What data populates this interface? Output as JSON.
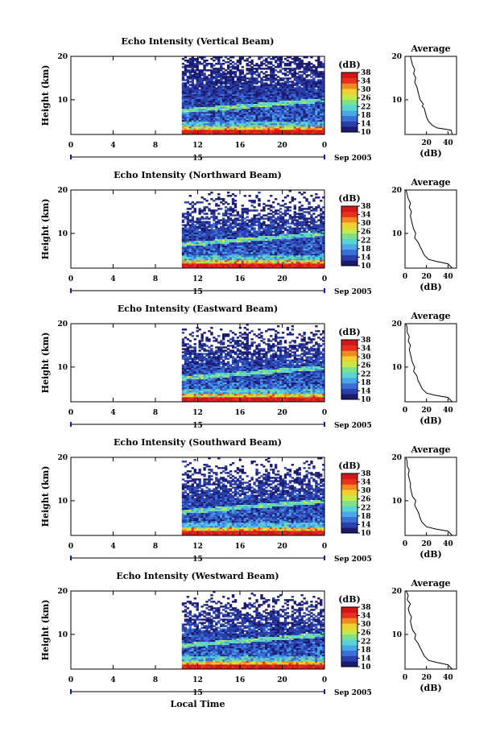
{
  "colors": {
    "bg": "#ffffff",
    "axis": "#000000",
    "colormap": [
      "#1a1a6e",
      "#2b3fa8",
      "#3a6fd8",
      "#4aa8e8",
      "#5ad4d0",
      "#7fe08a",
      "#c8e84a",
      "#f0d030",
      "#f08a20",
      "#e83020",
      "#d01818"
    ],
    "no_data": "#ffffff"
  },
  "chart_data": [
    {
      "type": "heatmap",
      "title": "Echo Intensity (Vertical Beam)",
      "ylabel": "Height (km)",
      "xlim": [
        0,
        24
      ],
      "ylim": [
        2,
        20
      ],
      "x_ticks": [
        "0",
        "4",
        "8",
        "12",
        "16",
        "20",
        "0"
      ],
      "y_ticks": [
        "20",
        "10"
      ],
      "date_label": "15",
      "date_suffix": "Sep 2005",
      "data_start_hour": 10.5,
      "colorbar": {
        "label": "(dB)",
        "ticks": [
          "38",
          "34",
          "30",
          "26",
          "22",
          "18",
          "14",
          "10"
        ],
        "range": [
          10,
          38
        ]
      },
      "average": {
        "title": "Average",
        "xlabel": "(dB)",
        "x_ticks": [
          "20",
          "40"
        ],
        "xlim": [
          0,
          48
        ],
        "ylim": [
          2,
          20
        ],
        "y_ticks": [
          "20",
          "10"
        ],
        "profile": [
          [
            44,
            2
          ],
          [
            43,
            3
          ],
          [
            30,
            3.5
          ],
          [
            26,
            4
          ],
          [
            22,
            5
          ],
          [
            20,
            6
          ],
          [
            19,
            7
          ],
          [
            18,
            8
          ],
          [
            16,
            8.5
          ],
          [
            17,
            9
          ],
          [
            14,
            10
          ],
          [
            13,
            11
          ],
          [
            12,
            12
          ],
          [
            11,
            13
          ],
          [
            9,
            14
          ],
          [
            10,
            15
          ],
          [
            8,
            16
          ],
          [
            9,
            17
          ],
          [
            7,
            18
          ],
          [
            6,
            19
          ],
          [
            5,
            20
          ]
        ]
      }
    },
    {
      "type": "heatmap",
      "title": "Echo Intensity (Northward Beam)",
      "ylabel": "Height (km)",
      "xlim": [
        0,
        24
      ],
      "ylim": [
        2,
        20
      ],
      "x_ticks": [
        "0",
        "4",
        "8",
        "12",
        "16",
        "20",
        "0"
      ],
      "y_ticks": [
        "20",
        "10"
      ],
      "date_label": "15",
      "date_suffix": "Sep 2005",
      "data_start_hour": 10.5,
      "colorbar": {
        "label": "(dB)",
        "ticks": [
          "38",
          "34",
          "30",
          "26",
          "22",
          "18",
          "14",
          "10"
        ],
        "range": [
          10,
          38
        ]
      },
      "average": {
        "title": "Average",
        "xlabel": "(dB)",
        "x_ticks": [
          "0",
          "20",
          "40"
        ],
        "xlim": [
          0,
          48
        ],
        "ylim": [
          2,
          20
        ],
        "y_ticks": [
          "20",
          "10"
        ],
        "profile": [
          [
            44,
            2
          ],
          [
            40,
            3
          ],
          [
            30,
            3.5
          ],
          [
            22,
            4
          ],
          [
            18,
            5
          ],
          [
            16,
            6
          ],
          [
            14,
            7
          ],
          [
            12,
            8
          ],
          [
            9,
            9
          ],
          [
            10,
            10
          ],
          [
            8,
            11
          ],
          [
            7,
            12
          ],
          [
            6,
            13
          ],
          [
            5,
            14
          ],
          [
            6,
            15
          ],
          [
            4,
            16
          ],
          [
            5,
            17
          ],
          [
            3,
            18
          ],
          [
            2,
            19
          ],
          [
            1,
            20
          ]
        ]
      }
    },
    {
      "type": "heatmap",
      "title": "Echo Intensity (Eastward Beam)",
      "ylabel": "Height (km)",
      "xlim": [
        0,
        24
      ],
      "ylim": [
        2,
        20
      ],
      "x_ticks": [
        "0",
        "4",
        "8",
        "12",
        "16",
        "20",
        "0"
      ],
      "y_ticks": [
        "20",
        "10"
      ],
      "date_label": "15",
      "date_suffix": "Sep 2005",
      "data_start_hour": 10.5,
      "colorbar": {
        "label": "(dB)",
        "ticks": [
          "38",
          "34",
          "30",
          "26",
          "22",
          "18",
          "14",
          "10"
        ],
        "range": [
          10,
          38
        ]
      },
      "average": {
        "title": "Average",
        "xlabel": "(dB)",
        "x_ticks": [
          "0",
          "20",
          "40"
        ],
        "xlim": [
          0,
          48
        ],
        "ylim": [
          2,
          20
        ],
        "y_ticks": [
          "20",
          "10"
        ],
        "profile": [
          [
            44,
            2
          ],
          [
            40,
            3
          ],
          [
            28,
            3.5
          ],
          [
            20,
            4
          ],
          [
            16,
            5
          ],
          [
            14,
            6
          ],
          [
            12,
            7
          ],
          [
            11,
            8
          ],
          [
            8,
            9
          ],
          [
            9,
            10
          ],
          [
            7,
            11
          ],
          [
            6,
            12
          ],
          [
            5,
            13
          ],
          [
            4,
            14
          ],
          [
            5,
            15
          ],
          [
            3,
            16
          ],
          [
            4,
            17
          ],
          [
            2,
            18
          ],
          [
            2,
            19
          ],
          [
            1,
            20
          ]
        ]
      }
    },
    {
      "type": "heatmap",
      "title": "Echo Intensity (Southward Beam)",
      "ylabel": "Height (km)",
      "xlim": [
        0,
        24
      ],
      "ylim": [
        2,
        20
      ],
      "x_ticks": [
        "0",
        "4",
        "8",
        "12",
        "16",
        "20",
        "0"
      ],
      "y_ticks": [
        "20",
        "10"
      ],
      "date_label": "15",
      "date_suffix": "Sep 2005",
      "data_start_hour": 10.5,
      "colorbar": {
        "label": "(dB)",
        "ticks": [
          "38",
          "34",
          "30",
          "26",
          "22",
          "18",
          "14",
          "10"
        ],
        "range": [
          10,
          38
        ]
      },
      "average": {
        "title": "Average",
        "xlabel": "(dB)",
        "x_ticks": [
          "0",
          "20",
          "40"
        ],
        "xlim": [
          0,
          48
        ],
        "ylim": [
          2,
          20
        ],
        "y_ticks": [
          "20",
          "10"
        ],
        "profile": [
          [
            44,
            2
          ],
          [
            40,
            3
          ],
          [
            28,
            3.5
          ],
          [
            20,
            4
          ],
          [
            16,
            5
          ],
          [
            14,
            6
          ],
          [
            13,
            7
          ],
          [
            11,
            8
          ],
          [
            9,
            9
          ],
          [
            10,
            10
          ],
          [
            7,
            11
          ],
          [
            6,
            12
          ],
          [
            5,
            13
          ],
          [
            5,
            14
          ],
          [
            4,
            15
          ],
          [
            3,
            16
          ],
          [
            4,
            17
          ],
          [
            2,
            18
          ],
          [
            2,
            19
          ],
          [
            1,
            20
          ]
        ]
      }
    },
    {
      "type": "heatmap",
      "title": "Echo Intensity (Westward Beam)",
      "ylabel": "Height (km)",
      "xlim": [
        0,
        24
      ],
      "ylim": [
        2,
        20
      ],
      "x_ticks": [
        "0",
        "4",
        "8",
        "12",
        "16",
        "20",
        "0"
      ],
      "y_ticks": [
        "20",
        "10"
      ],
      "date_label": "15",
      "date_suffix": "Sep 2005",
      "data_start_hour": 10.5,
      "xlabel": "Local Time",
      "colorbar": {
        "label": "(dB)",
        "ticks": [
          "38",
          "34",
          "30",
          "26",
          "22",
          "18",
          "14",
          "10"
        ],
        "range": [
          10,
          38
        ]
      },
      "average": {
        "title": "Average",
        "xlabel": "(dB)",
        "x_ticks": [
          "0",
          "20",
          "40"
        ],
        "xlim": [
          0,
          48
        ],
        "ylim": [
          2,
          20
        ],
        "y_ticks": [
          "20",
          "10"
        ],
        "profile": [
          [
            44,
            2
          ],
          [
            40,
            3
          ],
          [
            30,
            3.5
          ],
          [
            22,
            4
          ],
          [
            18,
            5
          ],
          [
            16,
            6
          ],
          [
            14,
            7
          ],
          [
            12,
            8
          ],
          [
            9,
            9
          ],
          [
            10,
            10
          ],
          [
            7,
            11
          ],
          [
            6,
            12
          ],
          [
            5,
            13
          ],
          [
            6,
            14
          ],
          [
            4,
            15
          ],
          [
            3,
            16
          ],
          [
            5,
            17
          ],
          [
            2,
            18
          ],
          [
            3,
            19
          ],
          [
            1,
            20
          ]
        ]
      }
    }
  ]
}
